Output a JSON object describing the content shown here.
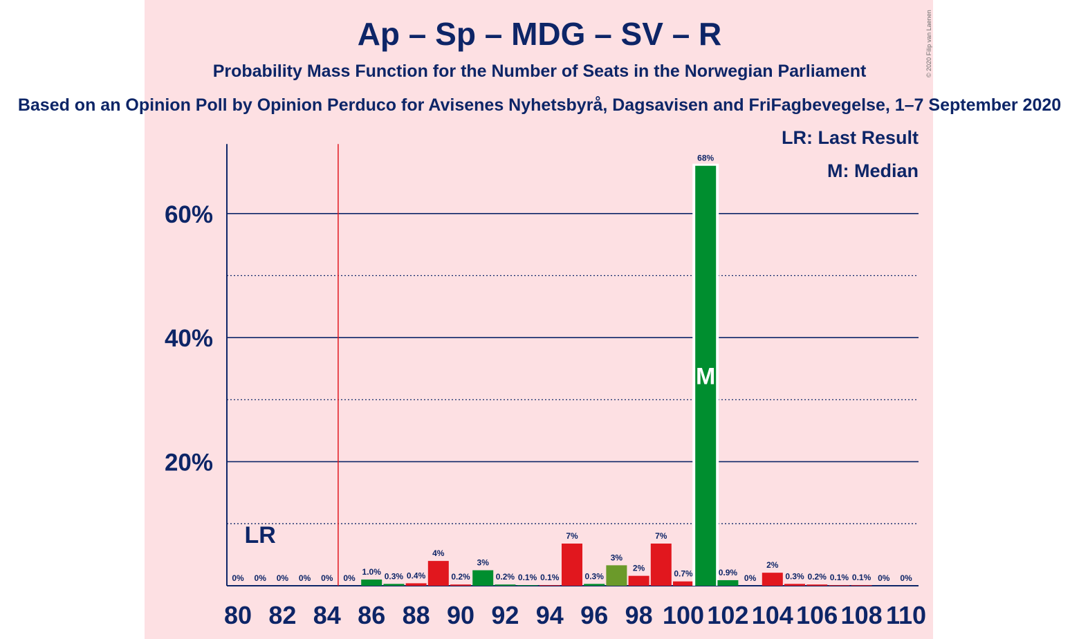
{
  "title": "Ap – Sp – MDG – SV – R",
  "subtitle": "Probability Mass Function for the Number of Seats in the Norwegian Parliament",
  "source": "Based on an Opinion Poll by Opinion Perduco for Avisenes Nyhetsbyrå, Dagsavisen and FriFagbevegelse, 1–7 September 2020",
  "credit": "© 2020 Filip van Laenen",
  "legend": {
    "last_result": "LR: Last Result",
    "median": "M: Median"
  },
  "markers": {
    "last_result_label": "LR",
    "median_label": "M"
  },
  "colors": {
    "background": "#fde0e3",
    "text": "#0d2567",
    "red": "#e1171e",
    "green": "#008e2f",
    "olive": "#6b9a2a",
    "majority_line": "#e1171e"
  },
  "chart_data": {
    "type": "bar",
    "ylim": [
      0,
      74
    ],
    "yticks": [
      {
        "value": 20,
        "label": "20%"
      },
      {
        "value": 40,
        "label": "40%"
      },
      {
        "value": 60,
        "label": "60%"
      }
    ],
    "minor_gridlines": [
      10,
      30,
      50
    ],
    "xticks": [
      80,
      82,
      84,
      86,
      88,
      90,
      92,
      94,
      96,
      98,
      100,
      102,
      104,
      106,
      108,
      110
    ],
    "majority_seats": 85,
    "last_result_seats": 81,
    "median_seats": 101,
    "bars": [
      {
        "seats": 80,
        "value": 0,
        "label": "0%",
        "color": "red"
      },
      {
        "seats": 81,
        "value": 0,
        "label": "0%",
        "color": "red"
      },
      {
        "seats": 82,
        "value": 0,
        "label": "0%",
        "color": "red"
      },
      {
        "seats": 83,
        "value": 0,
        "label": "0%",
        "color": "red"
      },
      {
        "seats": 84,
        "value": 0,
        "label": "0%",
        "color": "red"
      },
      {
        "seats": 85,
        "value": 0,
        "label": "0%",
        "color": "red"
      },
      {
        "seats": 86,
        "value": 1.0,
        "label": "1.0%",
        "color": "green"
      },
      {
        "seats": 87,
        "value": 0.3,
        "label": "0.3%",
        "color": "green"
      },
      {
        "seats": 88,
        "value": 0.4,
        "label": "0.4%",
        "color": "red"
      },
      {
        "seats": 89,
        "value": 4,
        "label": "4%",
        "color": "red"
      },
      {
        "seats": 90,
        "value": 0.2,
        "label": "0.2%",
        "color": "red"
      },
      {
        "seats": 91,
        "value": 2.5,
        "label": "3%",
        "color": "green"
      },
      {
        "seats": 92,
        "value": 0.2,
        "label": "0.2%",
        "color": "green"
      },
      {
        "seats": 93,
        "value": 0.1,
        "label": "0.1%",
        "color": "green"
      },
      {
        "seats": 94,
        "value": 0.1,
        "label": "0.1%",
        "color": "red"
      },
      {
        "seats": 95,
        "value": 6.8,
        "label": "7%",
        "color": "red"
      },
      {
        "seats": 96,
        "value": 0.3,
        "label": "0.3%",
        "color": "green"
      },
      {
        "seats": 97,
        "value": 3.3,
        "label": "3%",
        "color": "olive"
      },
      {
        "seats": 98,
        "value": 1.6,
        "label": "2%",
        "color": "red"
      },
      {
        "seats": 99,
        "value": 6.8,
        "label": "7%",
        "color": "red"
      },
      {
        "seats": 100,
        "value": 0.7,
        "label": "0.7%",
        "color": "red"
      },
      {
        "seats": 101,
        "value": 67.7,
        "label": "68%",
        "color": "green"
      },
      {
        "seats": 102,
        "value": 0.9,
        "label": "0.9%",
        "color": "green"
      },
      {
        "seats": 103,
        "value": 0,
        "label": "0%",
        "color": "green"
      },
      {
        "seats": 104,
        "value": 2.1,
        "label": "2%",
        "color": "red"
      },
      {
        "seats": 105,
        "value": 0.3,
        "label": "0.3%",
        "color": "red"
      },
      {
        "seats": 106,
        "value": 0.2,
        "label": "0.2%",
        "color": "red"
      },
      {
        "seats": 107,
        "value": 0.1,
        "label": "0.1%",
        "color": "red"
      },
      {
        "seats": 108,
        "value": 0.1,
        "label": "0.1%",
        "color": "red"
      },
      {
        "seats": 109,
        "value": 0,
        "label": "0%",
        "color": "red"
      },
      {
        "seats": 110,
        "value": 0,
        "label": "0%",
        "color": "red"
      }
    ]
  }
}
